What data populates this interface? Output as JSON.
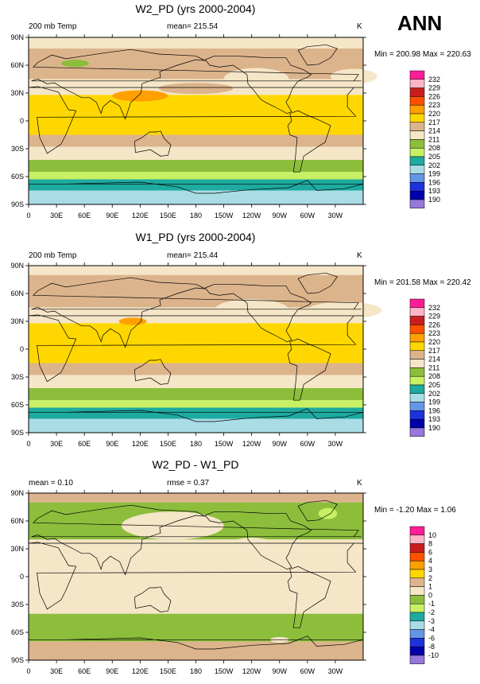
{
  "season": "ANN",
  "panels": [
    {
      "title": "W2_PD (yrs 2000-2004)",
      "left_label": "200 mb Temp",
      "center_label": "mean= 215.54",
      "units": "K",
      "minmax": "Min = 200.98 Max = 220.63",
      "legend": [
        "232",
        "229",
        "226",
        "223",
        "220",
        "217",
        "214",
        "211",
        "208",
        "205",
        "202",
        "199",
        "196",
        "193",
        "190"
      ]
    },
    {
      "title": "W1_PD (yrs 2000-2004)",
      "left_label": "200 mb Temp",
      "center_label": "mean= 215.44",
      "units": "K",
      "minmax": "Min = 201.58 Max = 220.42",
      "legend": [
        "232",
        "229",
        "226",
        "223",
        "220",
        "217",
        "214",
        "211",
        "208",
        "205",
        "202",
        "199",
        "196",
        "193",
        "190"
      ]
    },
    {
      "title": "W2_PD - W1_PD",
      "left_label": "mean =  0.10",
      "center_label": "rmse =  0.37",
      "units": "K",
      "minmax": "Min =  -1.20 Max =  1.06",
      "legend": [
        "10",
        "8",
        "6",
        "4",
        "3",
        "2",
        "1",
        "0",
        "-1",
        "-2",
        "-3",
        "-4",
        "-6",
        "-8",
        "-10"
      ]
    }
  ],
  "lat_labels": [
    "90N",
    "60N",
    "30N",
    "0",
    "30S",
    "60S",
    "90S"
  ],
  "lon_labels": [
    "0",
    "30E",
    "60E",
    "90E",
    "120E",
    "150E",
    "180",
    "150W",
    "120W",
    "90W",
    "60W",
    "30W"
  ],
  "legend_colors": [
    "#ff1e96",
    "#ffb4c8",
    "#c81e1e",
    "#ff5000",
    "#ffa000",
    "#ffd700",
    "#dcb48c",
    "#f5e6c8",
    "#8cbe3c",
    "#c8f064",
    "#1eaaa0",
    "#aadce6",
    "#6496e6",
    "#1e32dc",
    "#0000aa",
    "#9678dc"
  ]
}
